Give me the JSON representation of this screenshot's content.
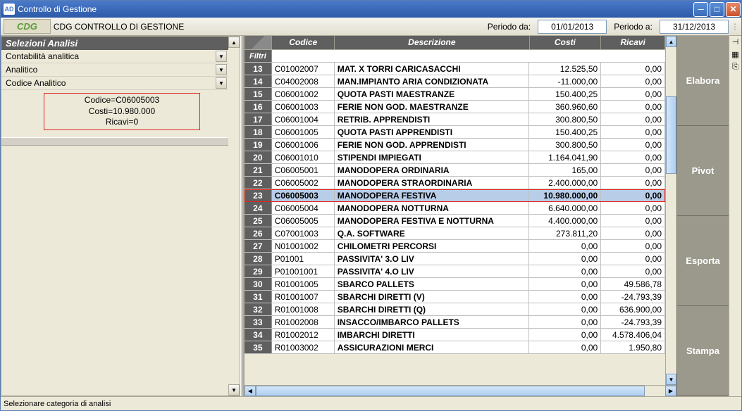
{
  "window": {
    "title": "Controllo di Gestione",
    "icon_text": "AD"
  },
  "toolbar": {
    "badge": "CDG",
    "title": "CDG CONTROLLO DI GESTIONE",
    "period_from_label": "Periodo da:",
    "period_from_value": "01/01/2013",
    "period_to_label": "Periodo a:",
    "period_to_value": "31/12/2013"
  },
  "sidebar": {
    "header": "Selezioni Analisi",
    "items": [
      {
        "label": "Contabilità analitica"
      },
      {
        "label": "Analitico"
      },
      {
        "label": "Codice Analitico"
      }
    ],
    "info_lines": [
      "Codice=C06005003",
      "Costi=10.980.000",
      "Ricavi=0"
    ]
  },
  "grid": {
    "filter_label": "Filtri",
    "columns": [
      {
        "key": "codice",
        "label": "Codice"
      },
      {
        "key": "descrizione",
        "label": "Descrizione"
      },
      {
        "key": "costi",
        "label": "Costi"
      },
      {
        "key": "ricavi",
        "label": "Ricavi"
      }
    ],
    "rows": [
      {
        "n": "13",
        "codice": "C01002007",
        "desc": "MAT. X TORRI CARICASACCHI",
        "costi": "12.525,50",
        "ricavi": "0,00"
      },
      {
        "n": "14",
        "codice": "C04002008",
        "desc": "MAN.IMPIANTO ARIA CONDIZIONATA",
        "costi": "-11.000,00",
        "ricavi": "0,00"
      },
      {
        "n": "15",
        "codice": "C06001002",
        "desc": "QUOTA PASTI MAESTRANZE",
        "costi": "150.400,25",
        "ricavi": "0,00"
      },
      {
        "n": "16",
        "codice": "C06001003",
        "desc": "FERIE NON GOD. MAESTRANZE",
        "costi": "360.960,60",
        "ricavi": "0,00"
      },
      {
        "n": "17",
        "codice": "C06001004",
        "desc": "RETRIB. APPRENDISTI",
        "costi": "300.800,50",
        "ricavi": "0,00"
      },
      {
        "n": "18",
        "codice": "C06001005",
        "desc": "QUOTA PASTI APPRENDISTI",
        "costi": "150.400,25",
        "ricavi": "0,00"
      },
      {
        "n": "19",
        "codice": "C06001006",
        "desc": "FERIE NON GOD. APPRENDISTI",
        "costi": "300.800,50",
        "ricavi": "0,00"
      },
      {
        "n": "20",
        "codice": "C06001010",
        "desc": "STIPENDI IMPIEGATI",
        "costi": "1.164.041,90",
        "ricavi": "0,00"
      },
      {
        "n": "21",
        "codice": "C06005001",
        "desc": "MANODOPERA ORDINARIA",
        "costi": "165,00",
        "ricavi": "0,00"
      },
      {
        "n": "22",
        "codice": "C06005002",
        "desc": "MANODOPERA STRAORDINARIA",
        "costi": "2.400.000,00",
        "ricavi": "0,00"
      },
      {
        "n": "23",
        "codice": "C06005003",
        "desc": "MANODOPERA FESTIVA",
        "costi": "10.980.000,00",
        "ricavi": "0,00",
        "highlight": true
      },
      {
        "n": "24",
        "codice": "C06005004",
        "desc": "MANODOPERA NOTTURNA",
        "costi": "6.640.000,00",
        "ricavi": "0,00"
      },
      {
        "n": "25",
        "codice": "C06005005",
        "desc": "MANODOPERA FESTIVA E NOTTURNA",
        "costi": "4.400.000,00",
        "ricavi": "0,00"
      },
      {
        "n": "26",
        "codice": "C07001003",
        "desc": "Q.A. SOFTWARE",
        "costi": "273.811,20",
        "ricavi": "0,00"
      },
      {
        "n": "27",
        "codice": "N01001002",
        "desc": "CHILOMETRI PERCORSI",
        "costi": "0,00",
        "ricavi": "0,00"
      },
      {
        "n": "28",
        "codice": "P01001",
        "desc": "PASSIVITA' 3.O LIV",
        "costi": "0,00",
        "ricavi": "0,00"
      },
      {
        "n": "29",
        "codice": "P01001001",
        "desc": "PASSIVITA' 4.O LIV",
        "costi": "0,00",
        "ricavi": "0,00"
      },
      {
        "n": "30",
        "codice": "R01001005",
        "desc": "SBARCO PALLETS",
        "costi": "0,00",
        "ricavi": "49.586,78"
      },
      {
        "n": "31",
        "codice": "R01001007",
        "desc": "SBARCHI DIRETTI (V)",
        "costi": "0,00",
        "ricavi": "-24.793,39"
      },
      {
        "n": "32",
        "codice": "R01001008",
        "desc": "SBARCHI DIRETTI (Q)",
        "costi": "0,00",
        "ricavi": "636.900,00"
      },
      {
        "n": "33",
        "codice": "R01002008",
        "desc": "INSACCO/IMBARCO PALLETS",
        "costi": "0,00",
        "ricavi": "-24.793,39"
      },
      {
        "n": "34",
        "codice": "R01002012",
        "desc": "IMBARCHI DIRETTI",
        "costi": "0,00",
        "ricavi": "4.578.406,04"
      },
      {
        "n": "35",
        "codice": "R01003002",
        "desc": "ASSICURAZIONI MERCI",
        "costi": "0,00",
        "ricavi": "1.950,80"
      }
    ]
  },
  "right_buttons": [
    "Elabora",
    "Pivot",
    "Esporta",
    "Stampa"
  ],
  "statusbar": {
    "text": "Selezionare categoria di analisi"
  },
  "colors": {
    "highlight_border": "#e2241a",
    "highlight_bg": "#b8cde8"
  }
}
